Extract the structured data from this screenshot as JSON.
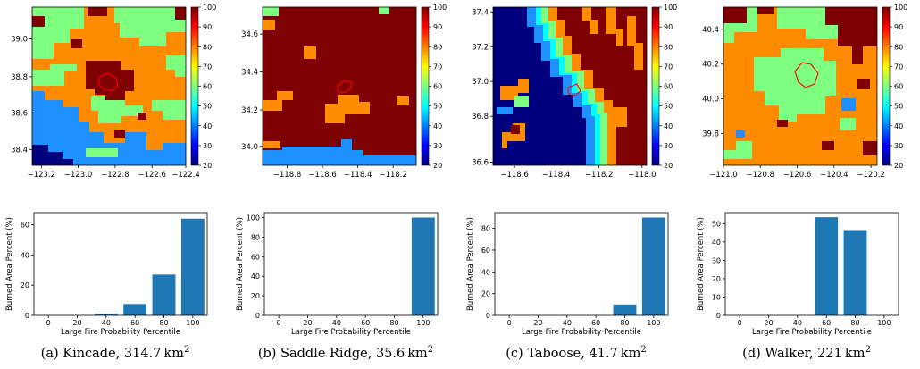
{
  "colormap": {
    "name": "jet",
    "min": 20,
    "max": 100,
    "ticks": [
      "100",
      "90",
      "80",
      "70",
      "60",
      "50",
      "40",
      "30",
      "20"
    ],
    "stops": [
      "#00007f",
      "#0000ff",
      "#007fff",
      "#00ffff",
      "#7fff7f",
      "#ffff00",
      "#ff7f00",
      "#ff0000",
      "#7f0000"
    ]
  },
  "chart_data": [
    {
      "type": "heatmap",
      "panel": "a",
      "xticks": [
        "−123.2",
        "−123.0",
        "−122.8",
        "−122.6",
        "−122.4"
      ],
      "yticks": [
        "39.0",
        "38.8",
        "38.6",
        "38.4"
      ],
      "fire_perimeter_color": "#ff0000"
    },
    {
      "type": "heatmap",
      "panel": "b",
      "xticks": [
        "−118.8",
        "−118.6",
        "−118.4",
        "−118.2"
      ],
      "yticks": [
        "34.6",
        "34.4",
        "34.2",
        "34.0"
      ],
      "fire_perimeter_color": "#ff0000"
    },
    {
      "type": "heatmap",
      "panel": "c",
      "xticks": [
        "−118.6",
        "−118.4",
        "−118.2",
        "−118.0"
      ],
      "yticks": [
        "37.4",
        "37.2",
        "37.0",
        "36.8",
        "36.6"
      ],
      "fire_perimeter_color": "#ff0000"
    },
    {
      "type": "heatmap",
      "panel": "d",
      "xticks": [
        "−121.0",
        "−120.8",
        "−120.6",
        "−120.4",
        "−120.2"
      ],
      "yticks": [
        "40.4",
        "40.2",
        "40.0",
        "39.8"
      ],
      "fire_perimeter_color": "#ff0000"
    },
    {
      "type": "bar",
      "panel": "a",
      "xlabel": "Large Fire Probability Percentile",
      "ylabel": "Burned Area Percent (%)",
      "categories": [
        0,
        20,
        40,
        60,
        80,
        100
      ],
      "values": [
        0,
        0,
        1,
        7.5,
        27,
        64
      ],
      "ylim": [
        0,
        68
      ],
      "yticks": [
        0,
        20,
        40,
        60
      ],
      "xticks": [
        0,
        20,
        40,
        60,
        80,
        100
      ],
      "bar_color": "#1f77b4"
    },
    {
      "type": "bar",
      "panel": "b",
      "xlabel": "Large Fire Probability Percentile",
      "ylabel": "Burned Area Percent (%)",
      "categories": [
        0,
        20,
        40,
        60,
        80,
        100
      ],
      "values": [
        0,
        0,
        0,
        0,
        0,
        100
      ],
      "ylim": [
        0,
        105
      ],
      "yticks": [
        0,
        20,
        40,
        60,
        80,
        100
      ],
      "xticks": [
        0,
        20,
        40,
        60,
        80,
        100
      ],
      "bar_color": "#1f77b4"
    },
    {
      "type": "bar",
      "panel": "c",
      "xlabel": "Large Fire Probability Percentile",
      "ylabel": "Burned Area Percent (%)",
      "categories": [
        0,
        20,
        40,
        60,
        80,
        100
      ],
      "values": [
        0,
        0,
        0,
        0,
        10,
        90
      ],
      "ylim": [
        0,
        94.5
      ],
      "yticks": [
        0,
        20,
        40,
        60,
        80
      ],
      "xticks": [
        0,
        20,
        40,
        60,
        80,
        100
      ],
      "bar_color": "#1f77b4"
    },
    {
      "type": "bar",
      "panel": "d",
      "xlabel": "Large Fire Probability Percentile",
      "ylabel": "Burned Area Percent (%)",
      "categories": [
        0,
        20,
        40,
        60,
        80,
        100
      ],
      "values": [
        0,
        0,
        0,
        53.5,
        46.5,
        0
      ],
      "ylim": [
        0,
        56
      ],
      "yticks": [
        0,
        10,
        20,
        30,
        40,
        50
      ],
      "xticks": [
        0,
        20,
        40,
        60,
        80,
        100
      ],
      "bar_color": "#1f77b4"
    }
  ],
  "captions": [
    {
      "label": "(a)",
      "name": "Kincade,",
      "area": "314.7",
      "unit": "km",
      "sup": "2"
    },
    {
      "label": "(b)",
      "name": "Saddle Ridge,",
      "area": "35.6",
      "unit": "km",
      "sup": "2"
    },
    {
      "label": "(c)",
      "name": "Taboose,",
      "area": "41.7",
      "unit": "km",
      "sup": "2"
    },
    {
      "label": "(d)",
      "name": "Walker,",
      "area": "221",
      "unit": "km",
      "sup": "2"
    }
  ]
}
